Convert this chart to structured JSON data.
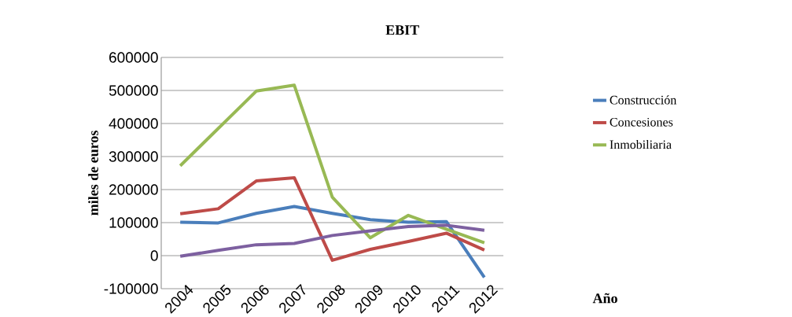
{
  "chart_data": {
    "type": "line",
    "title": "EBIT",
    "annotations": [
      "Año"
    ],
    "ylabel": "miles de euros",
    "categories": [
      "2004",
      "2005",
      "2006",
      "2007",
      "2008",
      "2009",
      "2010",
      "2011",
      "2012"
    ],
    "series": [
      {
        "name": "Construcción",
        "color": "#4a7ebb",
        "values": [
          101000,
          99000,
          128000,
          149000,
          128000,
          109000,
          101000,
          103000,
          -66000
        ]
      },
      {
        "name": "Concesiones",
        "color": "#be4b48",
        "values": [
          127000,
          142000,
          226000,
          236000,
          -14000,
          19000,
          43000,
          68000,
          17000
        ]
      },
      {
        "name": "Inmobiliaria",
        "color": "#98b954",
        "values": [
          272000,
          385000,
          498000,
          516000,
          177000,
          54000,
          122000,
          80000,
          39000
        ]
      },
      {
        "color": "#7d60a0",
        "values": [
          -2000,
          16000,
          33000,
          37000,
          61000,
          75000,
          88000,
          92000,
          77000
        ]
      }
    ],
    "ylim": [
      -100000,
      600000
    ],
    "yticks": [
      -100000,
      0,
      100000,
      200000,
      300000,
      400000,
      500000,
      600000
    ],
    "grid": "y",
    "legend": "right",
    "marker": "none",
    "line_style": "solid"
  }
}
